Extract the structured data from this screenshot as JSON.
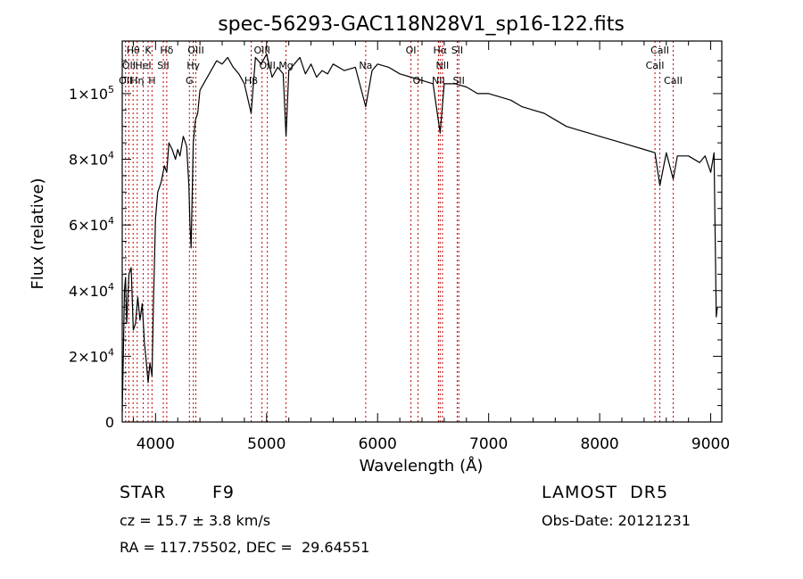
{
  "chart_data": {
    "type": "line",
    "title": "spec-56293-GAC118N28V1_sp16-122.fits",
    "xlabel": "Wavelength (Å)",
    "ylabel": "Flux (relative)",
    "xlim": [
      3700,
      9100
    ],
    "ylim": [
      0,
      116000
    ],
    "x_ticks": [
      4000,
      5000,
      6000,
      7000,
      8000,
      9000
    ],
    "x_tick_labels": [
      "4000",
      "5000",
      "6000",
      "7000",
      "8000",
      "9000"
    ],
    "y_ticks": [
      0,
      20000,
      40000,
      60000,
      80000,
      100000
    ],
    "y_tick_labels": [
      {
        "base": "0",
        "exp": ""
      },
      {
        "base": "2×10",
        "exp": "4"
      },
      {
        "base": "4×10",
        "exp": "4"
      },
      {
        "base": "6×10",
        "exp": "4"
      },
      {
        "base": "8×10",
        "exp": "4"
      },
      {
        "base": "1×10",
        "exp": "5"
      }
    ],
    "grid": false,
    "line_color": "#000000",
    "marker_color": "#c00000",
    "series": [
      {
        "x": [
          3700,
          3710,
          3720,
          3730,
          3740,
          3760,
          3780,
          3800,
          3820,
          3840,
          3860,
          3880,
          3900,
          3920,
          3933,
          3950,
          3968,
          3980,
          4000,
          4020,
          4050,
          4080,
          4101,
          4120,
          4150,
          4180,
          4200,
          4220,
          4250,
          4280,
          4300,
          4310,
          4320,
          4340,
          4360,
          4380,
          4400,
          4450,
          4500,
          4550,
          4600,
          4650,
          4700,
          4750,
          4800,
          4861,
          4900,
          4950,
          5000,
          5050,
          5100,
          5150,
          5175,
          5200,
          5250,
          5300,
          5350,
          5400,
          5450,
          5500,
          5550,
          5600,
          5700,
          5800,
          5893,
          5950,
          6000,
          6100,
          6200,
          6300,
          6400,
          6500,
          6563,
          6600,
          6700,
          6800,
          6900,
          7000,
          7100,
          7200,
          7300,
          7400,
          7500,
          7600,
          7700,
          7800,
          7900,
          8000,
          8100,
          8200,
          8300,
          8400,
          8498,
          8542,
          8600,
          8662,
          8700,
          8800,
          8900,
          8950,
          9000,
          9030,
          9050,
          9060
        ],
        "y": [
          3000,
          20000,
          40000,
          44000,
          30000,
          45000,
          47000,
          28000,
          30000,
          38000,
          31000,
          36000,
          24000,
          17000,
          12000,
          18000,
          14000,
          34000,
          62000,
          70000,
          73000,
          78000,
          76000,
          85000,
          83000,
          80000,
          83000,
          81000,
          87000,
          84000,
          72000,
          60000,
          53000,
          85000,
          92000,
          94000,
          101000,
          104000,
          107000,
          110000,
          109000,
          111000,
          108000,
          106000,
          103000,
          94000,
          111000,
          109000,
          112000,
          105000,
          108000,
          106000,
          87000,
          107000,
          109000,
          111000,
          106000,
          109000,
          105000,
          107000,
          106000,
          109000,
          107000,
          108000,
          96000,
          107000,
          109000,
          108000,
          106000,
          105000,
          104000,
          103000,
          88000,
          103000,
          103000,
          102000,
          100000,
          100000,
          99000,
          98000,
          96000,
          95000,
          94000,
          92000,
          90000,
          89000,
          88000,
          87000,
          86000,
          85000,
          84000,
          83000,
          82000,
          72000,
          82000,
          74000,
          81000,
          81000,
          79000,
          81000,
          76000,
          82000,
          32000,
          35000
        ]
      }
    ],
    "line_markers": [
      {
        "x": 3730,
        "label": "OII",
        "row": 2
      },
      {
        "x": 3760,
        "label": "OII",
        "row": 1
      },
      {
        "x": 3798,
        "label": "Hθ",
        "row": 0
      },
      {
        "x": 3835,
        "label": "Hη",
        "row": 2
      },
      {
        "x": 3889,
        "label": "HeI",
        "row": 1
      },
      {
        "x": 3933,
        "label": "K",
        "row": 0
      },
      {
        "x": 3968,
        "label": "H",
        "row": 2
      },
      {
        "x": 4070,
        "label": "SII",
        "row": 1
      },
      {
        "x": 4101,
        "label": "Hδ",
        "row": 0
      },
      {
        "x": 4305,
        "label": "G",
        "row": 2
      },
      {
        "x": 4340,
        "label": "Hγ",
        "row": 1
      },
      {
        "x": 4363,
        "label": "OIII",
        "row": 0
      },
      {
        "x": 4861,
        "label": "Hβ",
        "row": 2
      },
      {
        "x": 4959,
        "label": "OIII",
        "row": 0
      },
      {
        "x": 5007,
        "label": "OIII",
        "row": 1
      },
      {
        "x": 5175,
        "label": "Mg",
        "row": 1
      },
      {
        "x": 5893,
        "label": "Na",
        "row": 1
      },
      {
        "x": 6300,
        "label": "OI",
        "row": 0
      },
      {
        "x": 6364,
        "label": "OI",
        "row": 2
      },
      {
        "x": 6548,
        "label": "NII",
        "row": 2
      },
      {
        "x": 6563,
        "label": "Hα",
        "row": 0
      },
      {
        "x": 6584,
        "label": "NII",
        "row": 1
      },
      {
        "x": 6717,
        "label": "SII",
        "row": 0
      },
      {
        "x": 6731,
        "label": "SII",
        "row": 2
      },
      {
        "x": 8498,
        "label": "CaII",
        "row": 1
      },
      {
        "x": 8542,
        "label": "CaII",
        "row": 0
      },
      {
        "x": 8662,
        "label": "CaII",
        "row": 2
      }
    ]
  },
  "info": {
    "object_class": "STAR",
    "subclass": "F9",
    "survey": "LAMOST  DR5",
    "redshift": "cz = 15.7 ± 3.8 km/s",
    "obs_date": "Obs-Date: 20121231",
    "coords": "RA = 117.75502, DEC =  29.64551"
  }
}
